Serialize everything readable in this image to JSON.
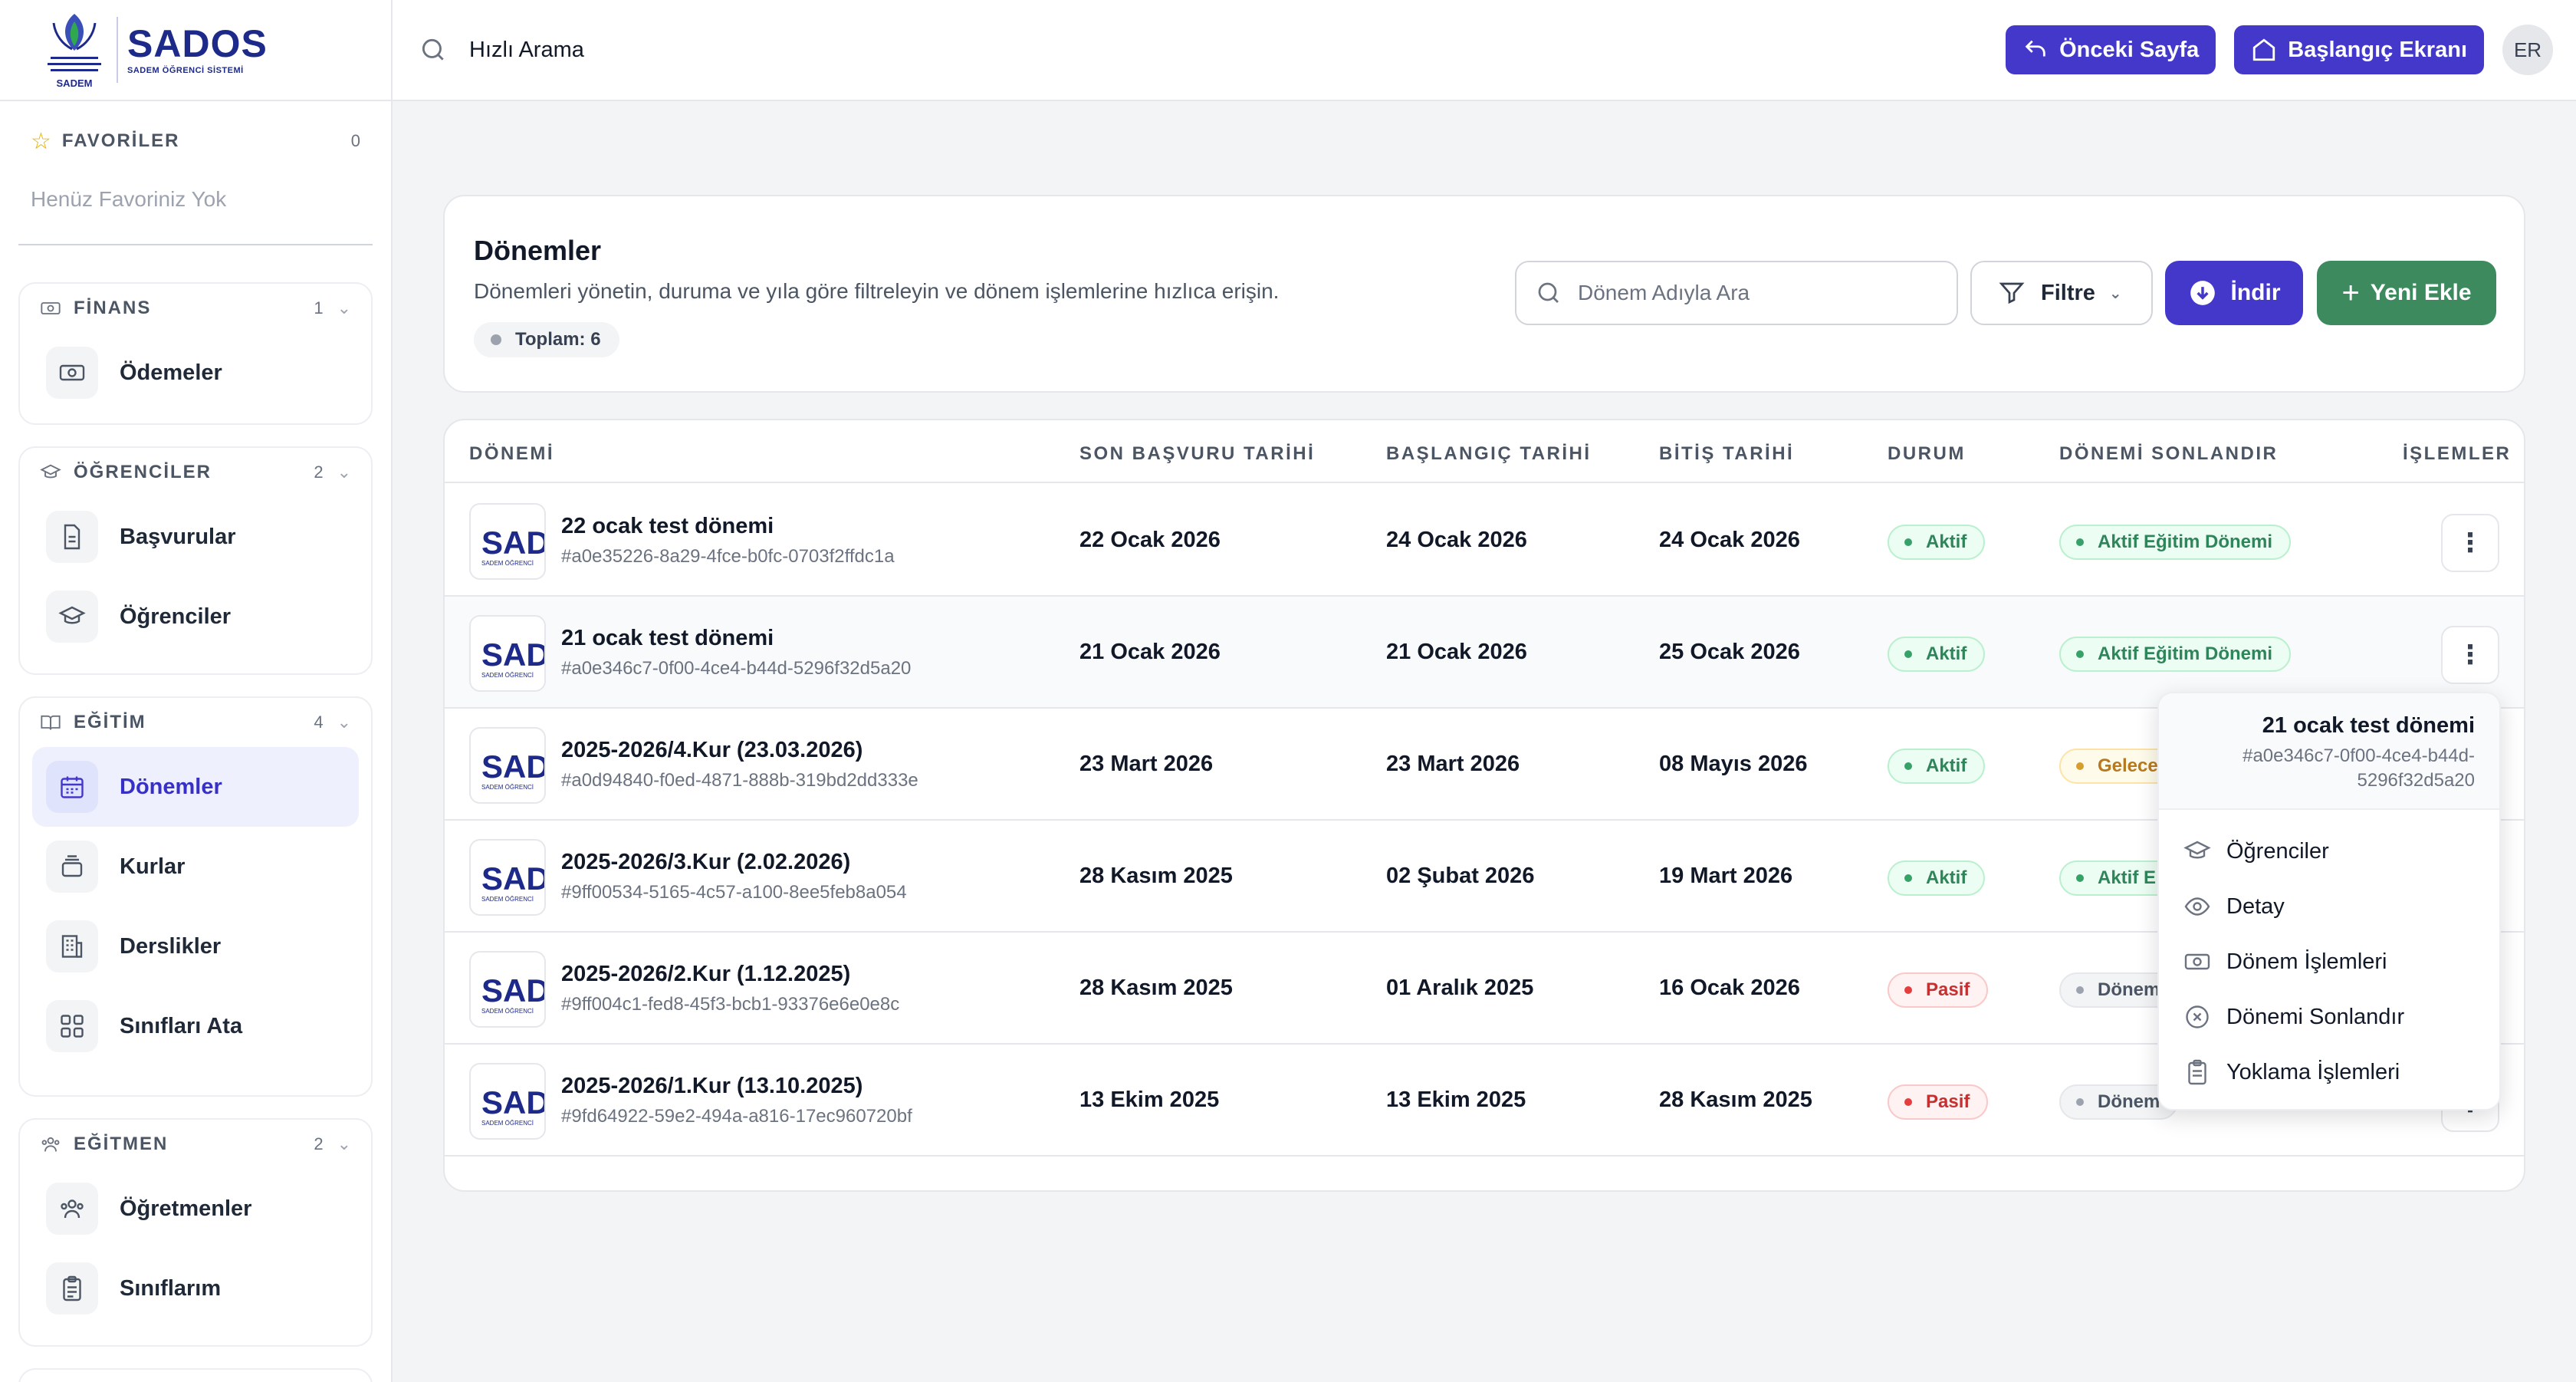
{
  "brand": {
    "name": "SADOS",
    "subtitle": "SADEM ÖĞRENCİ SİSTEMİ",
    "emblem_text": "SADEM"
  },
  "topbar": {
    "search_label": "Hızlı Arama",
    "back_label": "Önceki Sayfa",
    "home_label": "Başlangıç Ekranı",
    "avatar_initials": "ER"
  },
  "sidebar": {
    "favorites": {
      "label": "FAVORİLER",
      "count": "0",
      "empty_text": "Henüz Favoriniz Yok"
    },
    "groups": [
      {
        "label": "FİNANS",
        "count": "1",
        "items": [
          {
            "label": "Ödemeler",
            "icon": "money-icon"
          }
        ]
      },
      {
        "label": "ÖĞRENCİLER",
        "count": "2",
        "items": [
          {
            "label": "Başvurular",
            "icon": "document-icon"
          },
          {
            "label": "Öğrenciler",
            "icon": "graduation-cap-icon"
          }
        ]
      },
      {
        "label": "EĞİTİM",
        "count": "4",
        "items": [
          {
            "label": "Dönemler",
            "icon": "calendar-icon",
            "active": true
          },
          {
            "label": "Kurlar",
            "icon": "layers-icon"
          },
          {
            "label": "Derslikler",
            "icon": "building-icon"
          },
          {
            "label": "Sınıfları Ata",
            "icon": "grid-icon"
          }
        ]
      },
      {
        "label": "EĞİTMEN",
        "count": "2",
        "items": [
          {
            "label": "Öğretmenler",
            "icon": "users-icon"
          },
          {
            "label": "Sınıflarım",
            "icon": "clipboard-icon"
          }
        ]
      }
    ]
  },
  "header": {
    "title": "Dönemler",
    "description": "Dönemleri yönetin, duruma ve yıla göre filtreleyin ve dönem işlemlerine hızlıca erişin.",
    "total": "Toplam: 6",
    "search_placeholder": "Dönem Adıyla Ara",
    "filter_label": "Filtre",
    "download_label": "İndir",
    "add_label": "Yeni Ekle"
  },
  "table": {
    "columns": [
      "DÖNEMİ",
      "SON BAŞVURU TARİHİ",
      "BAŞLANGIÇ TARİHİ",
      "BİTİŞ TARİHİ",
      "DURUM",
      "DÖNEMİ SONLANDIR",
      "İŞLEMLER"
    ],
    "logo_text": "SADOS",
    "logo_sub": "SADEM ÖĞRENCİ",
    "rows": [
      {
        "title": "22 ocak test dönemi",
        "id": "#a0e35226-8a29-4fce-b0fc-0703f2ffdc1a",
        "deadline": "22 Ocak 2026",
        "start": "24 Ocak 2026",
        "end": "24 Ocak 2026",
        "status": "Aktif",
        "status_color": "green",
        "term": "Aktif Eğitim Dönemi",
        "term_color": "green"
      },
      {
        "title": "21 ocak test dönemi",
        "id": "#a0e346c7-0f00-4ce4-b44d-5296f32d5a20",
        "deadline": "21 Ocak 2026",
        "start": "21 Ocak 2026",
        "end": "25 Ocak 2026",
        "status": "Aktif",
        "status_color": "green",
        "term": "Aktif Eğitim Dönemi",
        "term_color": "green"
      },
      {
        "title": "2025-2026/4.Kur (23.03.2026)",
        "id": "#a0d94840-f0ed-4871-888b-319bd2dd333e",
        "deadline": "23 Mart 2026",
        "start": "23 Mart 2026",
        "end": "08 Mayıs 2026",
        "status": "Aktif",
        "status_color": "green",
        "term": "Gelecek",
        "term_color": "amber"
      },
      {
        "title": "2025-2026/3.Kur (2.02.2026)",
        "id": "#9ff00534-5165-4c57-a100-8ee5feb8a054",
        "deadline": "28 Kasım 2025",
        "start": "02 Şubat 2026",
        "end": "19 Mart 2026",
        "status": "Aktif",
        "status_color": "green",
        "term": "Aktif E",
        "term_color": "green"
      },
      {
        "title": "2025-2026/2.Kur (1.12.2025)",
        "id": "#9ff004c1-fed8-45f3-bcb1-93376e6e0e8c",
        "deadline": "28 Kasım 2025",
        "start": "01 Aralık 2025",
        "end": "16 Ocak 2026",
        "status": "Pasif",
        "status_color": "red",
        "term": "Dönem",
        "term_color": "gray"
      },
      {
        "title": "2025-2026/1.Kur (13.10.2025)",
        "id": "#9fd64922-59e2-494a-a816-17ec960720bf",
        "deadline": "13 Ekim 2025",
        "start": "13 Ekim 2025",
        "end": "28 Kasım 2025",
        "status": "Pasif",
        "status_color": "red",
        "term": "Dönem",
        "term_color": "gray"
      }
    ]
  },
  "dropdown": {
    "title": "21 ocak test dönemi",
    "id": "#a0e346c7-0f00-4ce4-b44d-5296f32d5a20",
    "items": [
      {
        "label": "Öğrenciler",
        "icon": "graduation-cap-icon"
      },
      {
        "label": "Detay",
        "icon": "eye-icon"
      },
      {
        "label": "Dönem İşlemleri",
        "icon": "money-icon"
      },
      {
        "label": "Dönemi Sonlandır",
        "icon": "x-circle-icon"
      },
      {
        "label": "Yoklama İşlemleri",
        "icon": "clipboard-icon"
      }
    ]
  },
  "colors": {
    "primary": "#4338ca",
    "success": "#3d8a5f",
    "brand_navy": "#1e2a8a"
  }
}
